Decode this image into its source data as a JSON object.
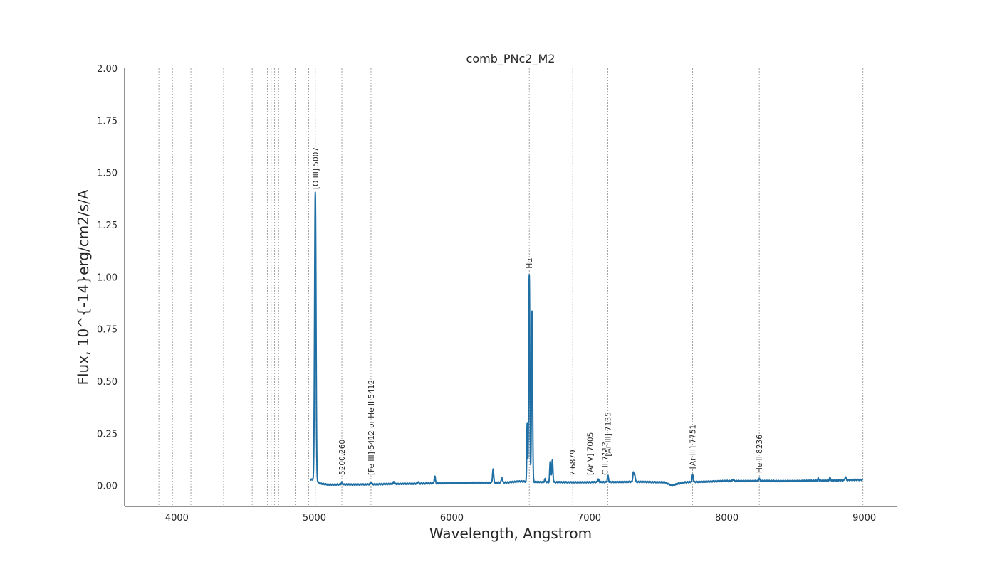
{
  "chart_data": {
    "type": "line",
    "title": "comb_PNc2_M2",
    "xlabel": "Wavelength, Angstrom",
    "ylabel": "Flux, 10^{-14}erg/cm2/s/A",
    "xlim": [
      3620,
      9240
    ],
    "ylim": [
      -0.1,
      2.0
    ],
    "grid": false,
    "x_ticks": [
      4000,
      5000,
      6000,
      7000,
      8000,
      9000
    ],
    "y_ticks": [
      0.0,
      0.25,
      0.5,
      0.75,
      1.0,
      1.25,
      1.5,
      1.75,
      2.0
    ],
    "y_tick_labels": [
      "0.00",
      "0.25",
      "0.50",
      "0.75",
      "1.00",
      "1.25",
      "1.50",
      "1.75",
      "2.00"
    ],
    "line_color": "#1f6fa5",
    "vline_color": "#8c8c8c",
    "vertical_lines": [
      3869,
      3968,
      4102,
      4145,
      4340,
      4548,
      4658,
      4686,
      4711,
      4740,
      4861,
      4959,
      5007,
      5200,
      5412,
      6563,
      6879,
      7005,
      7113,
      7135,
      7751,
      8236,
      8990
    ],
    "line_labels": [
      {
        "x": 5007,
        "label": "[O III] 5007",
        "y": 1.42
      },
      {
        "x": 5200,
        "label": "5200.260",
        "y": 0.05
      },
      {
        "x": 5412,
        "label": "[Fe III] 5412 or He II 5412",
        "y": 0.05
      },
      {
        "x": 6563,
        "label": "Hα",
        "y": 1.04
      },
      {
        "x": 6879,
        "label": "? 6879",
        "y": 0.05
      },
      {
        "x": 7005,
        "label": "[Ar V] 7005",
        "y": 0.05
      },
      {
        "x": 7113,
        "label": "C II 7113",
        "y": 0.05
      },
      {
        "x": 7135,
        "label": "[Ar III] 7135",
        "y": 0.14
      },
      {
        "x": 7751,
        "label": "[Ar III] 7751",
        "y": 0.08
      },
      {
        "x": 8236,
        "label": "He II 8236",
        "y": 0.06
      }
    ],
    "series": [
      {
        "continuum": [
          [
            4970,
            0.028
          ],
          [
            5000,
            0.03
          ],
          [
            5040,
            0.01
          ],
          [
            5100,
            0.005
          ],
          [
            5300,
            0.005
          ],
          [
            5600,
            0.008
          ],
          [
            6000,
            0.012
          ],
          [
            6400,
            0.015
          ],
          [
            6500,
            0.02
          ],
          [
            6700,
            0.016
          ],
          [
            7000,
            0.016
          ],
          [
            7300,
            0.018
          ],
          [
            7550,
            0.016
          ],
          [
            7600,
            0.0
          ],
          [
            7640,
            0.008
          ],
          [
            7700,
            0.016
          ],
          [
            8000,
            0.022
          ],
          [
            8500,
            0.022
          ],
          [
            8800,
            0.025
          ],
          [
            8990,
            0.028
          ]
        ],
        "peaks": [
          {
            "x": 5007,
            "y": 1.38,
            "w": 5
          },
          {
            "x": 4959,
            "y": 0.02,
            "w": 4
          },
          {
            "x": 5200,
            "y": 0.01,
            "w": 5
          },
          {
            "x": 5412,
            "y": 0.01,
            "w": 5
          },
          {
            "x": 5577,
            "y": 0.01,
            "w": 4
          },
          {
            "x": 5755,
            "y": 0.008,
            "w": 4
          },
          {
            "x": 5876,
            "y": 0.035,
            "w": 4
          },
          {
            "x": 6300,
            "y": 0.065,
            "w": 4
          },
          {
            "x": 6364,
            "y": 0.025,
            "w": 4
          },
          {
            "x": 6548,
            "y": 0.28,
            "w": 3
          },
          {
            "x": 6563,
            "y": 0.99,
            "w": 4
          },
          {
            "x": 6583,
            "y": 0.82,
            "w": 4
          },
          {
            "x": 6678,
            "y": 0.015,
            "w": 4
          },
          {
            "x": 6716,
            "y": 0.1,
            "w": 4
          },
          {
            "x": 6731,
            "y": 0.105,
            "w": 4
          },
          {
            "x": 7065,
            "y": 0.015,
            "w": 4
          },
          {
            "x": 7135,
            "y": 0.03,
            "w": 4
          },
          {
            "x": 7320,
            "y": 0.045,
            "w": 4
          },
          {
            "x": 7330,
            "y": 0.035,
            "w": 4
          },
          {
            "x": 7751,
            "y": 0.035,
            "w": 4
          },
          {
            "x": 8046,
            "y": 0.008,
            "w": 4
          },
          {
            "x": 8236,
            "y": 0.012,
            "w": 4
          },
          {
            "x": 8665,
            "y": 0.01,
            "w": 4
          },
          {
            "x": 8750,
            "y": 0.012,
            "w": 4
          },
          {
            "x": 8863,
            "y": 0.015,
            "w": 4
          }
        ]
      }
    ]
  }
}
